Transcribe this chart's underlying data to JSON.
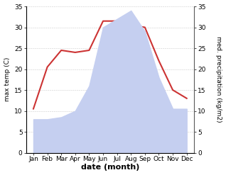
{
  "months": [
    "Jan",
    "Feb",
    "Mar",
    "Apr",
    "May",
    "Jun",
    "Jul",
    "Aug",
    "Sep",
    "Oct",
    "Nov",
    "Dec"
  ],
  "temperature": [
    10.5,
    20.5,
    24.5,
    24.0,
    24.5,
    31.5,
    31.5,
    30.5,
    30.0,
    22.0,
    15.0,
    13.0
  ],
  "precipitation": [
    8.0,
    8.0,
    8.5,
    10.0,
    16.0,
    30.0,
    32.0,
    34.0,
    29.0,
    18.0,
    10.5,
    10.5
  ],
  "temp_color": "#cc3333",
  "precip_color": "#c5cff0",
  "ylim_left": [
    0,
    35
  ],
  "ylim_right": [
    0,
    35
  ],
  "yticks": [
    0,
    5,
    10,
    15,
    20,
    25,
    30,
    35
  ],
  "xlabel": "date (month)",
  "ylabel_left": "max temp (C)",
  "ylabel_right": "med. precipitation (kg/m2)",
  "background_color": "#ffffff"
}
